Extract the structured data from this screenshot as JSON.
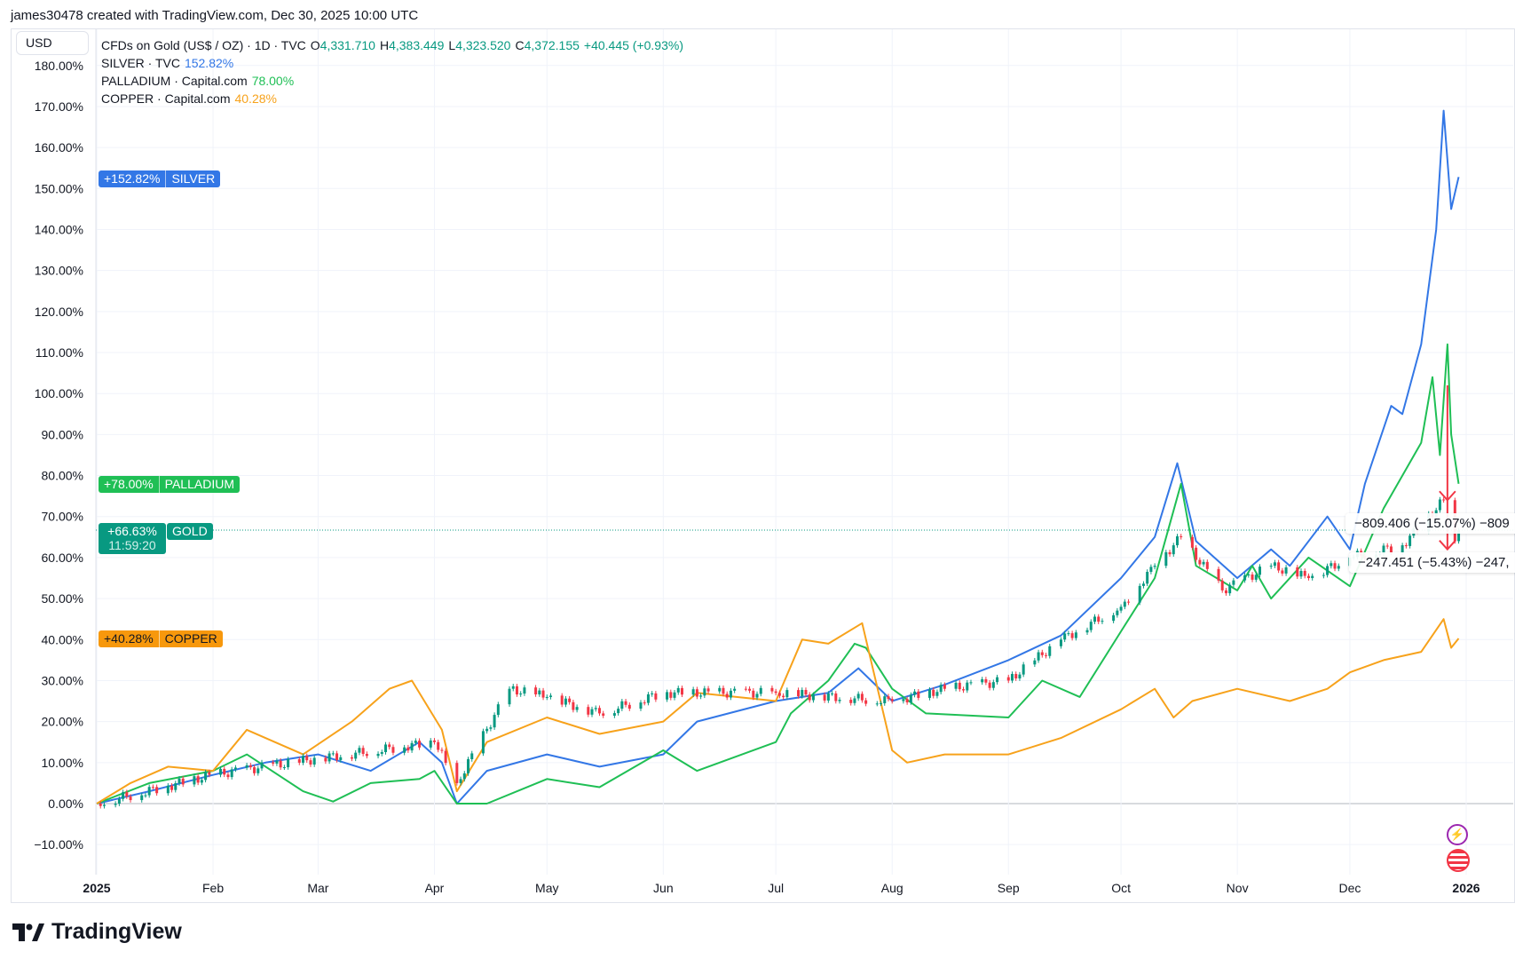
{
  "credit": "james30478 created with TradingView.com, Dec 30, 2025 10:00 UTC",
  "currency_button": "USD",
  "legend": {
    "main": {
      "label": "CFDs on Gold (US$ / OZ) · 1D · TVC",
      "o_label": "O",
      "o": "4,331.710",
      "h_label": "H",
      "h": "4,383.449",
      "l_label": "L",
      "l": "4,323.520",
      "c_label": "C",
      "c": "4,372.155",
      "change": "+40.445 (+0.93%)"
    },
    "silver": {
      "label": "SILVER · TVC",
      "value": "152.82%"
    },
    "palladium": {
      "label": "PALLADIUM · Capital.com",
      "value": "78.00%"
    },
    "copper": {
      "label": "COPPER · Capital.com",
      "value": "40.28%"
    }
  },
  "tags": {
    "silver": {
      "value": "+152.82%",
      "name": "SILVER"
    },
    "palladium": {
      "value": "+78.00%",
      "name": "PALLADIUM"
    },
    "gold": {
      "value": "+66.63%",
      "countdown": "11:59:20",
      "name": "GOLD"
    },
    "copper": {
      "value": "+40.28%",
      "name": "COPPER"
    }
  },
  "measure": {
    "upper": "−809.406 (−15.07%) −809",
    "lower": "−247.451 (−5.43%) −247,"
  },
  "brand": "TradingView",
  "colors": {
    "silver": "#3377e6",
    "palladium": "#1fbf55",
    "copper": "#f7a21b",
    "gold_up": "#089981",
    "gold_down": "#f23645",
    "measure": "#f23645"
  },
  "chart_data": {
    "type": "line",
    "ylim": [
      -15,
      182
    ],
    "xlim": [
      "2025-01-01",
      "2026-01-10"
    ],
    "y_ticks": [
      "-10",
      "0",
      "10",
      "20",
      "30",
      "40",
      "50",
      "60",
      "70",
      "80",
      "90",
      "100",
      "110",
      "120",
      "130",
      "140",
      "150",
      "160",
      "170",
      "180"
    ],
    "y_tick_labels": [
      "−10.00%",
      "0.00%",
      "10.00%",
      "20.00%",
      "30.00%",
      "40.00%",
      "50.00%",
      "60.00%",
      "70.00%",
      "80.00%",
      "90.00%",
      "100.00%",
      "110.00%",
      "120.00%",
      "130.00%",
      "140.00%",
      "150.00%",
      "160.00%",
      "170.00%",
      "180.00%"
    ],
    "x_ticks": [
      {
        "date": "2025-01-01",
        "label": "2025"
      },
      {
        "date": "2025-02-01",
        "label": "Feb"
      },
      {
        "date": "2025-03-01",
        "label": "Mar"
      },
      {
        "date": "2025-04-01",
        "label": "Apr"
      },
      {
        "date": "2025-05-01",
        "label": "May"
      },
      {
        "date": "2025-06-01",
        "label": "Jun"
      },
      {
        "date": "2025-07-01",
        "label": "Jul"
      },
      {
        "date": "2025-08-01",
        "label": "Aug"
      },
      {
        "date": "2025-09-01",
        "label": "Sep"
      },
      {
        "date": "2025-10-01",
        "label": "Oct"
      },
      {
        "date": "2025-11-01",
        "label": "Nov"
      },
      {
        "date": "2025-12-01",
        "label": "Dec"
      },
      {
        "date": "2026-01-01",
        "label": "2026"
      }
    ],
    "grid": true,
    "series": [
      {
        "name": "SILVER",
        "key": "silver",
        "points": [
          [
            "2025-01-01",
            0
          ],
          [
            "2025-01-15",
            3
          ],
          [
            "2025-02-01",
            7
          ],
          [
            "2025-02-15",
            10
          ],
          [
            "2025-03-01",
            12
          ],
          [
            "2025-03-15",
            8
          ],
          [
            "2025-03-28",
            15
          ],
          [
            "2025-04-03",
            10
          ],
          [
            "2025-04-07",
            0
          ],
          [
            "2025-04-15",
            8
          ],
          [
            "2025-05-01",
            12
          ],
          [
            "2025-05-15",
            9
          ],
          [
            "2025-06-01",
            12
          ],
          [
            "2025-06-10",
            20
          ],
          [
            "2025-07-01",
            25
          ],
          [
            "2025-07-15",
            27
          ],
          [
            "2025-07-23",
            33
          ],
          [
            "2025-08-01",
            25
          ],
          [
            "2025-08-15",
            29
          ],
          [
            "2025-09-01",
            35
          ],
          [
            "2025-09-15",
            41
          ],
          [
            "2025-10-01",
            55
          ],
          [
            "2025-10-10",
            65
          ],
          [
            "2025-10-16",
            83
          ],
          [
            "2025-10-21",
            64
          ],
          [
            "2025-11-01",
            55
          ],
          [
            "2025-11-10",
            62
          ],
          [
            "2025-11-15",
            58
          ],
          [
            "2025-11-25",
            70
          ],
          [
            "2025-12-01",
            62
          ],
          [
            "2025-12-05",
            78
          ],
          [
            "2025-12-12",
            97
          ],
          [
            "2025-12-15",
            95
          ],
          [
            "2025-12-20",
            112
          ],
          [
            "2025-12-24",
            140
          ],
          [
            "2025-12-26",
            169
          ],
          [
            "2025-12-28",
            145
          ],
          [
            "2025-12-30",
            152.82
          ]
        ]
      },
      {
        "name": "PALLADIUM",
        "key": "palladium",
        "points": [
          [
            "2025-01-01",
            0
          ],
          [
            "2025-01-15",
            5
          ],
          [
            "2025-02-01",
            8
          ],
          [
            "2025-02-10",
            12
          ],
          [
            "2025-02-25",
            3
          ],
          [
            "2025-03-05",
            0.5
          ],
          [
            "2025-03-15",
            5
          ],
          [
            "2025-03-28",
            6
          ],
          [
            "2025-04-01",
            8
          ],
          [
            "2025-04-07",
            0
          ],
          [
            "2025-04-15",
            0
          ],
          [
            "2025-05-01",
            6
          ],
          [
            "2025-05-15",
            4
          ],
          [
            "2025-06-01",
            13
          ],
          [
            "2025-06-10",
            8
          ],
          [
            "2025-07-01",
            15
          ],
          [
            "2025-07-05",
            22
          ],
          [
            "2025-07-15",
            30
          ],
          [
            "2025-07-22",
            39
          ],
          [
            "2025-07-25",
            38
          ],
          [
            "2025-08-01",
            28
          ],
          [
            "2025-08-10",
            22
          ],
          [
            "2025-09-01",
            21
          ],
          [
            "2025-09-10",
            30
          ],
          [
            "2025-09-20",
            26
          ],
          [
            "2025-10-01",
            42
          ],
          [
            "2025-10-10",
            55
          ],
          [
            "2025-10-17",
            78
          ],
          [
            "2025-10-21",
            58
          ],
          [
            "2025-11-01",
            52
          ],
          [
            "2025-11-05",
            58
          ],
          [
            "2025-11-10",
            50
          ],
          [
            "2025-11-20",
            60
          ],
          [
            "2025-12-01",
            53
          ],
          [
            "2025-12-10",
            72
          ],
          [
            "2025-12-20",
            88
          ],
          [
            "2025-12-23",
            104
          ],
          [
            "2025-12-25",
            85
          ],
          [
            "2025-12-27",
            112
          ],
          [
            "2025-12-28",
            90
          ],
          [
            "2025-12-30",
            78
          ]
        ]
      },
      {
        "name": "COPPER",
        "key": "copper",
        "points": [
          [
            "2025-01-01",
            0
          ],
          [
            "2025-01-10",
            5
          ],
          [
            "2025-01-20",
            9
          ],
          [
            "2025-02-01",
            8
          ],
          [
            "2025-02-10",
            18
          ],
          [
            "2025-02-25",
            12
          ],
          [
            "2025-03-10",
            20
          ],
          [
            "2025-03-20",
            28
          ],
          [
            "2025-03-26",
            30
          ],
          [
            "2025-04-03",
            18
          ],
          [
            "2025-04-07",
            3
          ],
          [
            "2025-04-15",
            15
          ],
          [
            "2025-05-01",
            21
          ],
          [
            "2025-05-15",
            17
          ],
          [
            "2025-06-01",
            20
          ],
          [
            "2025-06-10",
            27
          ],
          [
            "2025-07-01",
            25
          ],
          [
            "2025-07-08",
            40
          ],
          [
            "2025-07-15",
            39
          ],
          [
            "2025-07-24",
            44
          ],
          [
            "2025-08-01",
            13
          ],
          [
            "2025-08-05",
            10
          ],
          [
            "2025-08-15",
            12
          ],
          [
            "2025-09-01",
            12
          ],
          [
            "2025-09-15",
            16
          ],
          [
            "2025-10-01",
            23
          ],
          [
            "2025-10-10",
            28
          ],
          [
            "2025-10-15",
            21
          ],
          [
            "2025-10-20",
            25
          ],
          [
            "2025-11-01",
            28
          ],
          [
            "2025-11-15",
            25
          ],
          [
            "2025-11-25",
            28
          ],
          [
            "2025-12-01",
            32
          ],
          [
            "2025-12-10",
            35
          ],
          [
            "2025-12-20",
            37
          ],
          [
            "2025-12-26",
            45
          ],
          [
            "2025-12-28",
            38
          ],
          [
            "2025-12-30",
            40.28
          ]
        ]
      },
      {
        "name": "GOLD",
        "key": "gold",
        "style": "candles",
        "points": [
          [
            "2025-01-01",
            0
          ],
          [
            "2025-02-01",
            7
          ],
          [
            "2025-03-01",
            11
          ],
          [
            "2025-04-01",
            15
          ],
          [
            "2025-04-07",
            5
          ],
          [
            "2025-04-21",
            28
          ],
          [
            "2025-05-01",
            26
          ],
          [
            "2025-05-15",
            22
          ],
          [
            "2025-06-01",
            27
          ],
          [
            "2025-07-01",
            27
          ],
          [
            "2025-08-01",
            25
          ],
          [
            "2025-08-15",
            28
          ],
          [
            "2025-09-01",
            30
          ],
          [
            "2025-09-15",
            40
          ],
          [
            "2025-10-01",
            48
          ],
          [
            "2025-10-10",
            58
          ],
          [
            "2025-10-17",
            65
          ],
          [
            "2025-10-28",
            52
          ],
          [
            "2025-11-10",
            58
          ],
          [
            "2025-11-20",
            55
          ],
          [
            "2025-12-01",
            60
          ],
          [
            "2025-12-15",
            63
          ],
          [
            "2025-12-26",
            74
          ],
          [
            "2025-12-29",
            64
          ],
          [
            "2025-12-30",
            66.63
          ]
        ]
      }
    ]
  }
}
